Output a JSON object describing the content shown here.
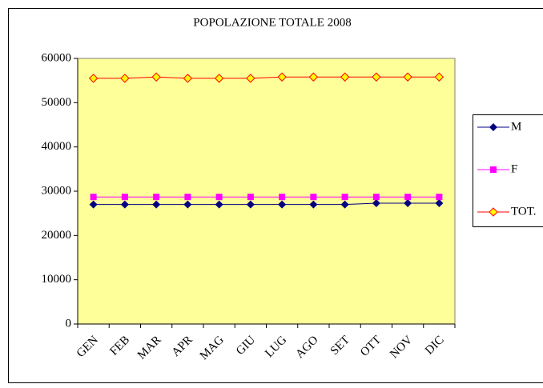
{
  "chart_data": {
    "type": "line",
    "title": "POPOLAZIONE TOTALE 2008",
    "categories": [
      "GEN",
      "FEB",
      "MAR",
      "APR",
      "MAG",
      "GIU",
      "LUG",
      "AGO",
      "SET",
      "OTT",
      "NOV",
      "DIC"
    ],
    "series": [
      {
        "name": "M",
        "color": "#000080",
        "marker": "diamond",
        "values": [
          27000,
          27000,
          27000,
          27000,
          27000,
          27000,
          27000,
          27000,
          27000,
          27300,
          27300,
          27300
        ]
      },
      {
        "name": "F",
        "color": "#ff00ff",
        "marker": "square",
        "values": [
          28700,
          28700,
          28700,
          28700,
          28700,
          28700,
          28700,
          28700,
          28700,
          28700,
          28700,
          28700
        ]
      },
      {
        "name": "TOT.",
        "color": "#ff0000",
        "marker": "diamond-hollow",
        "values": [
          55500,
          55500,
          55800,
          55500,
          55500,
          55500,
          55800,
          55800,
          55800,
          55800,
          55800,
          55800
        ]
      }
    ],
    "ylim": [
      0,
      60000
    ],
    "yticks": [
      0,
      10000,
      20000,
      30000,
      40000,
      50000,
      60000
    ],
    "legend": "right",
    "plot_background": "#ffff99"
  }
}
